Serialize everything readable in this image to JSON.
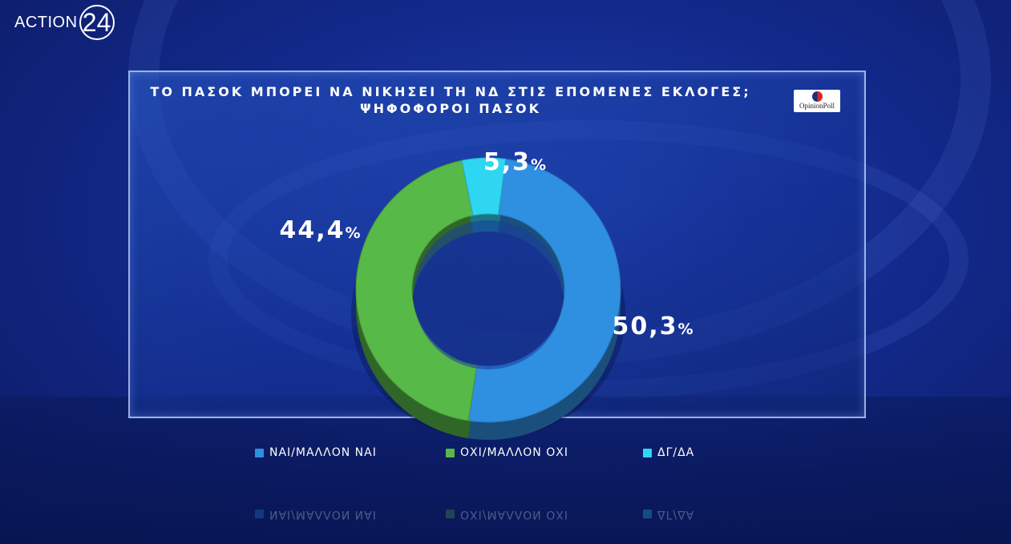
{
  "brand": {
    "word": "ACTION",
    "num": "24"
  },
  "badge": {
    "label": "OpinionPoll"
  },
  "chart_data": {
    "type": "pie",
    "title": "ΤΟ ΠΑΣΟΚ ΜΠΟΡΕΙ ΝΑ ΝΙΚΗΣΕΙ ΤΗ ΝΔ ΣΤΙΣ ΕΠΟΜΕΝΕΣ ΕΚΛΟΓΕΣ;",
    "subtitle": "ΨΗΦΟΦΟΡΟΙ ΠΑΣΟΚ",
    "style": "donut",
    "slices": [
      {
        "label": "ΝΑΙ/ΜΑΛΛΟΝ ΝΑΙ",
        "value": 50.3,
        "display": "50,3",
        "unit": "%",
        "color": "#2f8fe0"
      },
      {
        "label": "ΟΧΙ/ΜΑΛΛΟΝ ΟΧΙ",
        "value": 44.4,
        "display": "44,4",
        "unit": "%",
        "color": "#57b947"
      },
      {
        "label": "ΔΓ/ΔΑ",
        "value": 5.3,
        "display": "5,3",
        "unit": "%",
        "color": "#2fd6f2"
      }
    ],
    "legend_position": "bottom"
  }
}
